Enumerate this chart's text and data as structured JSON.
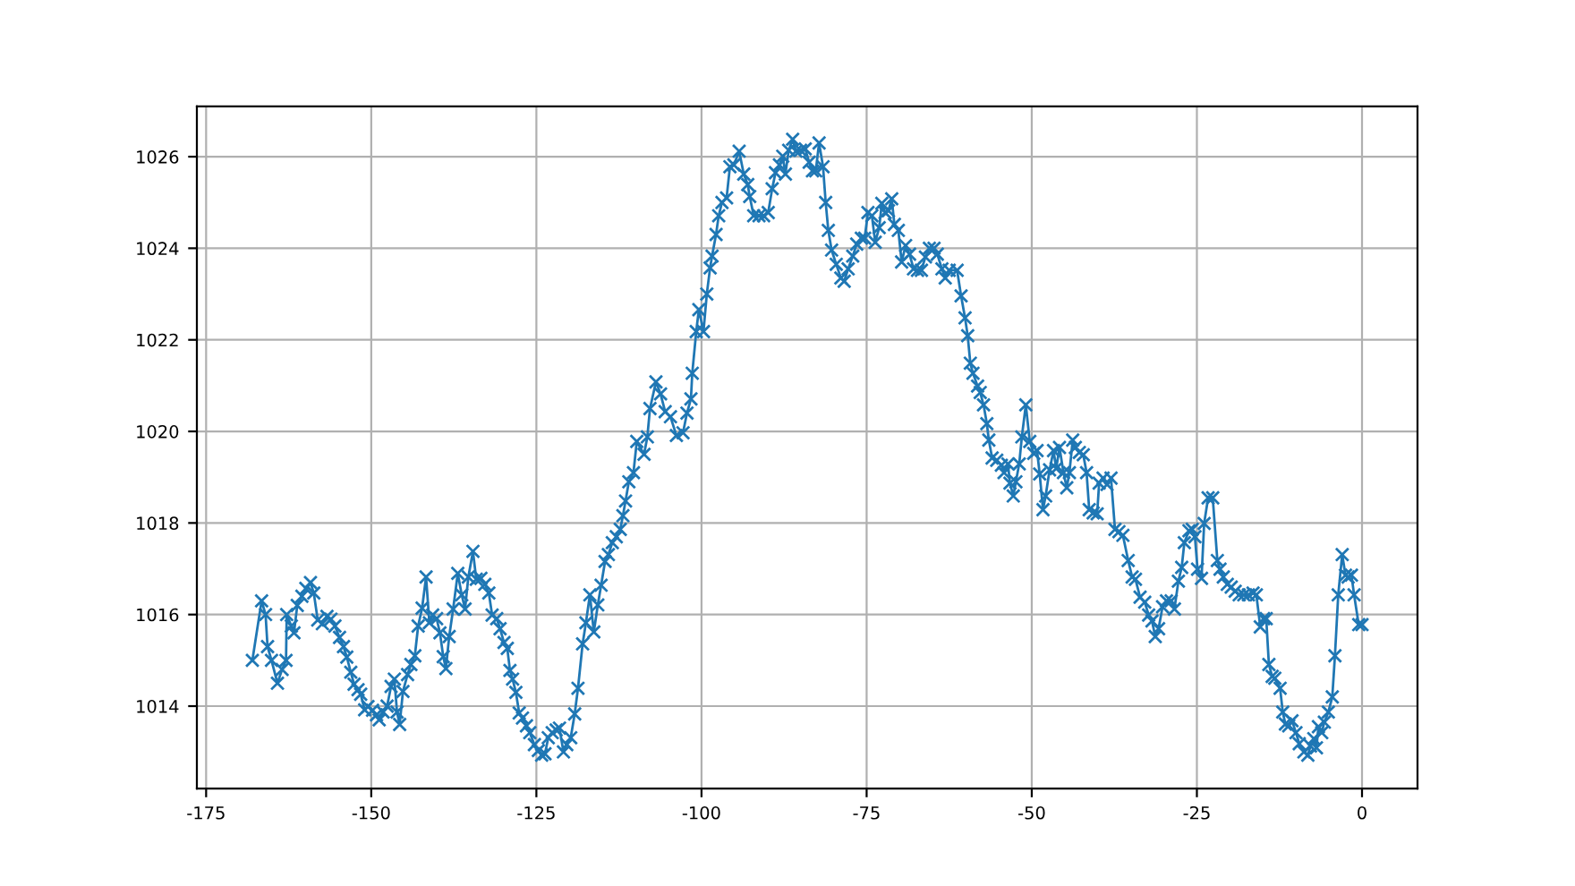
{
  "chart_data": {
    "type": "line",
    "marker": "cross",
    "line_style": "solid",
    "grid": true,
    "xlim": [
      -176.4,
      8.4
    ],
    "ylim": [
      1012.2,
      1027.1
    ],
    "xticks": [
      -175,
      -150,
      -125,
      -100,
      -75,
      -50,
      -25,
      0
    ],
    "yticks": [
      1014,
      1016,
      1018,
      1020,
      1022,
      1024,
      1026
    ],
    "series": [
      {
        "color": "#1f77b4",
        "x": [
          -168,
          -166.6,
          -166.0,
          -165.7,
          -165.1,
          -164.2,
          -163.5,
          -162.9,
          -162.8,
          -162.1,
          -161.7,
          -161.2,
          -160.5,
          -159.9,
          -159.2,
          -158.7,
          -158.1,
          -157.4,
          -156.7,
          -156.1,
          -155.5,
          -154.8,
          -154.2,
          -153.7,
          -153.1,
          -152.6,
          -152.0,
          -151.6,
          -151.0,
          -150.5,
          -149.8,
          -149.2,
          -148.8,
          -148.2,
          -147.6,
          -147.0,
          -146.5,
          -146.1,
          -145.7,
          -145.2,
          -144.5,
          -144.0,
          -143.4,
          -142.9,
          -142.3,
          -141.7,
          -141.2,
          -140.7,
          -140.1,
          -139.6,
          -139.1,
          -138.7,
          -138.2,
          -137.6,
          -136.9,
          -136.3,
          -135.8,
          -135.3,
          -134.6,
          -134.1,
          -133.4,
          -132.8,
          -132.2,
          -131.7,
          -131.0,
          -130.5,
          -129.9,
          -129.4,
          -129.0,
          -128.6,
          -128.1,
          -127.6,
          -127.1,
          -126.5,
          -126.0,
          -125.3,
          -124.7,
          -124.2,
          -123.7,
          -123.2,
          -122.6,
          -122.0,
          -121.5,
          -120.9,
          -120.4,
          -119.8,
          -119.2,
          -118.7,
          -118.0,
          -117.5,
          -116.9,
          -116.3,
          -115.7,
          -115.2,
          -114.6,
          -114.1,
          -113.5,
          -112.9,
          -112.3,
          -111.9,
          -111.5,
          -111.0,
          -110.3,
          -109.8,
          -108.7,
          -108.2,
          -107.8,
          -106.9,
          -106.2,
          -105.5,
          -104.7,
          -103.8,
          -102.8,
          -102.2,
          -101.6,
          -101.4,
          -100.8,
          -100.4,
          -99.7,
          -99.2,
          -98.7,
          -98.4,
          -97.8,
          -97.4,
          -96.9,
          -96.2,
          -95.7,
          -95.1,
          -94.3,
          -93.6,
          -93.0,
          -92.7,
          -92.1,
          -91.3,
          -90.6,
          -89.9,
          -89.3,
          -88.8,
          -88.2,
          -87.7,
          -87.3,
          -86.8,
          -86.2,
          -85.7,
          -85.0,
          -84.3,
          -83.7,
          -83.2,
          -82.7,
          -82.2,
          -81.6,
          -81.2,
          -80.8,
          -80.3,
          -79.6,
          -78.9,
          -78.4,
          -77.8,
          -77.1,
          -76.5,
          -75.8,
          -75.3,
          -74.8,
          -74.2,
          -73.7,
          -73.1,
          -72.7,
          -72.2,
          -71.7,
          -71.2,
          -70.8,
          -70.2,
          -69.7,
          -69.1,
          -68.5,
          -67.9,
          -67.3,
          -66.7,
          -66.1,
          -65.5,
          -64.8,
          -64.3,
          -63.6,
          -63.1,
          -62.5,
          -61.3,
          -60.7,
          -60.1,
          -59.7,
          -59.3,
          -58.9,
          -58.2,
          -57.8,
          -57.3,
          -56.8,
          -56.5,
          -56.0,
          -55.3,
          -54.6,
          -54.2,
          -53.6,
          -53.3,
          -52.8,
          -52.4,
          -51.9,
          -51.5,
          -50.9,
          -50.3,
          -49.7,
          -49.2,
          -48.8,
          -48.3,
          -47.9,
          -47.3,
          -46.7,
          -46.3,
          -45.8,
          -45.2,
          -44.7,
          -44.3,
          -43.8,
          -43.4,
          -42.8,
          -42.2,
          -41.7,
          -41.3,
          -40.7,
          -40.1,
          -39.8,
          -39.2,
          -38.6,
          -38.0,
          -37.4,
          -36.8,
          -36.2,
          -35.4,
          -34.8,
          -34.3,
          -33.6,
          -32.9,
          -32.3,
          -31.8,
          -31.3,
          -30.8,
          -30.2,
          -29.6,
          -28.9,
          -28.4,
          -27.8,
          -27.3,
          -26.9,
          -26.2,
          -25.7,
          -25.3,
          -24.9,
          -24.3,
          -23.9,
          -23.3,
          -22.6,
          -21.9,
          -21.5,
          -21.0,
          -20.4,
          -19.8,
          -19.2,
          -18.6,
          -17.9,
          -17.2,
          -16.5,
          -16.0,
          -15.4,
          -14.9,
          -14.5,
          -14.1,
          -13.6,
          -13.2,
          -12.4,
          -12.0,
          -11.6,
          -11.1,
          -10.6,
          -10.0,
          -9.5,
          -8.8,
          -8.2,
          -7.8,
          -7.3,
          -6.9,
          -6.6,
          -6.1,
          -5.7,
          -5.1,
          -4.5,
          -4.1,
          -3.6,
          -3.0,
          -2.5,
          -2.1,
          -1.6,
          -1.2,
          -0.5,
          0
        ],
        "values": [
          1015.0,
          1016.3,
          1016.0,
          1015.3,
          1015.0,
          1014.5,
          1014.8,
          1015.0,
          1016.0,
          1015.75,
          1015.6,
          1016.2,
          1016.4,
          1016.57,
          1016.7,
          1016.47,
          1015.88,
          1015.8,
          1015.96,
          1015.9,
          1015.75,
          1015.5,
          1015.3,
          1015.07,
          1014.74,
          1014.48,
          1014.36,
          1014.26,
          1013.92,
          1013.99,
          1013.91,
          1013.81,
          1013.7,
          1013.87,
          1014.0,
          1014.43,
          1014.59,
          1013.87,
          1013.6,
          1014.32,
          1014.69,
          1014.91,
          1015.1,
          1015.75,
          1016.14,
          1016.82,
          1015.82,
          1015.99,
          1015.91,
          1015.6,
          1015.08,
          1014.82,
          1015.52,
          1016.12,
          1016.9,
          1016.43,
          1016.12,
          1016.82,
          1017.38,
          1016.77,
          1016.79,
          1016.66,
          1016.47,
          1015.99,
          1015.91,
          1015.69,
          1015.39,
          1015.26,
          1014.78,
          1014.59,
          1014.3,
          1013.85,
          1013.74,
          1013.57,
          1013.42,
          1013.16,
          1013.03,
          1012.93,
          1012.96,
          1013.31,
          1013.42,
          1013.48,
          1013.52,
          1013.0,
          1013.16,
          1013.31,
          1013.83,
          1014.39,
          1015.36,
          1015.82,
          1016.43,
          1015.62,
          1016.21,
          1016.64,
          1017.16,
          1017.31,
          1017.57,
          1017.7,
          1017.86,
          1018.16,
          1018.48,
          1018.9,
          1019.1,
          1019.78,
          1019.5,
          1019.88,
          1020.5,
          1021.08,
          1020.82,
          1020.43,
          1020.32,
          1019.91,
          1019.97,
          1020.4,
          1020.71,
          1021.27,
          1022.18,
          1022.66,
          1022.18,
          1023.0,
          1023.57,
          1023.83,
          1024.3,
          1024.71,
          1025.0,
          1025.1,
          1025.78,
          1025.82,
          1026.12,
          1025.62,
          1025.39,
          1025.13,
          1024.71,
          1024.71,
          1024.71,
          1024.78,
          1025.3,
          1025.65,
          1025.82,
          1026.01,
          1025.62,
          1026.14,
          1026.38,
          1026.12,
          1026.14,
          1026.17,
          1025.88,
          1025.69,
          1025.69,
          1026.3,
          1025.78,
          1025.0,
          1024.39,
          1023.96,
          1023.65,
          1023.35,
          1023.28,
          1023.55,
          1023.83,
          1024.09,
          1024.22,
          1024.22,
          1024.78,
          1024.71,
          1024.13,
          1024.45,
          1024.98,
          1024.78,
          1024.82,
          1025.08,
          1024.52,
          1024.39,
          1023.7,
          1024.06,
          1023.87,
          1023.55,
          1023.52,
          1023.52,
          1023.81,
          1024.0,
          1024.0,
          1023.87,
          1023.55,
          1023.35,
          1023.52,
          1023.52,
          1022.96,
          1022.48,
          1022.09,
          1021.49,
          1021.27,
          1020.99,
          1020.85,
          1020.58,
          1020.17,
          1019.81,
          1019.42,
          1019.37,
          1019.26,
          1019.1,
          1019.29,
          1018.87,
          1018.59,
          1018.9,
          1019.29,
          1019.88,
          1020.58,
          1019.78,
          1019.52,
          1019.58,
          1019.07,
          1018.29,
          1018.59,
          1019.16,
          1019.58,
          1019.19,
          1019.65,
          1019.1,
          1018.77,
          1019.1,
          1019.81,
          1019.65,
          1019.54,
          1019.49,
          1019.1,
          1018.29,
          1018.22,
          1018.2,
          1018.87,
          1018.98,
          1018.84,
          1018.98,
          1017.86,
          1017.81,
          1017.73,
          1017.18,
          1016.82,
          1016.77,
          1016.38,
          1016.27,
          1015.99,
          1015.86,
          1015.52,
          1015.69,
          1016.17,
          1016.3,
          1016.3,
          1016.12,
          1016.73,
          1017.03,
          1017.57,
          1017.83,
          1017.86,
          1017.7,
          1016.99,
          1016.79,
          1017.99,
          1018.55,
          1018.55,
          1017.18,
          1016.99,
          1016.82,
          1016.66,
          1016.6,
          1016.51,
          1016.43,
          1016.43,
          1016.43,
          1016.47,
          1016.43,
          1015.73,
          1015.91,
          1015.91,
          1014.91,
          1014.65,
          1014.61,
          1014.39,
          1013.87,
          1013.61,
          1013.57,
          1013.68,
          1013.42,
          1013.18,
          1013.0,
          1012.93,
          1013.13,
          1013.29,
          1013.09,
          1013.55,
          1013.42,
          1013.65,
          1013.87,
          1014.2,
          1015.1,
          1016.43,
          1017.31,
          1016.86,
          1016.82,
          1016.86,
          1016.43,
          1015.78,
          1015.78
        ]
      }
    ]
  }
}
